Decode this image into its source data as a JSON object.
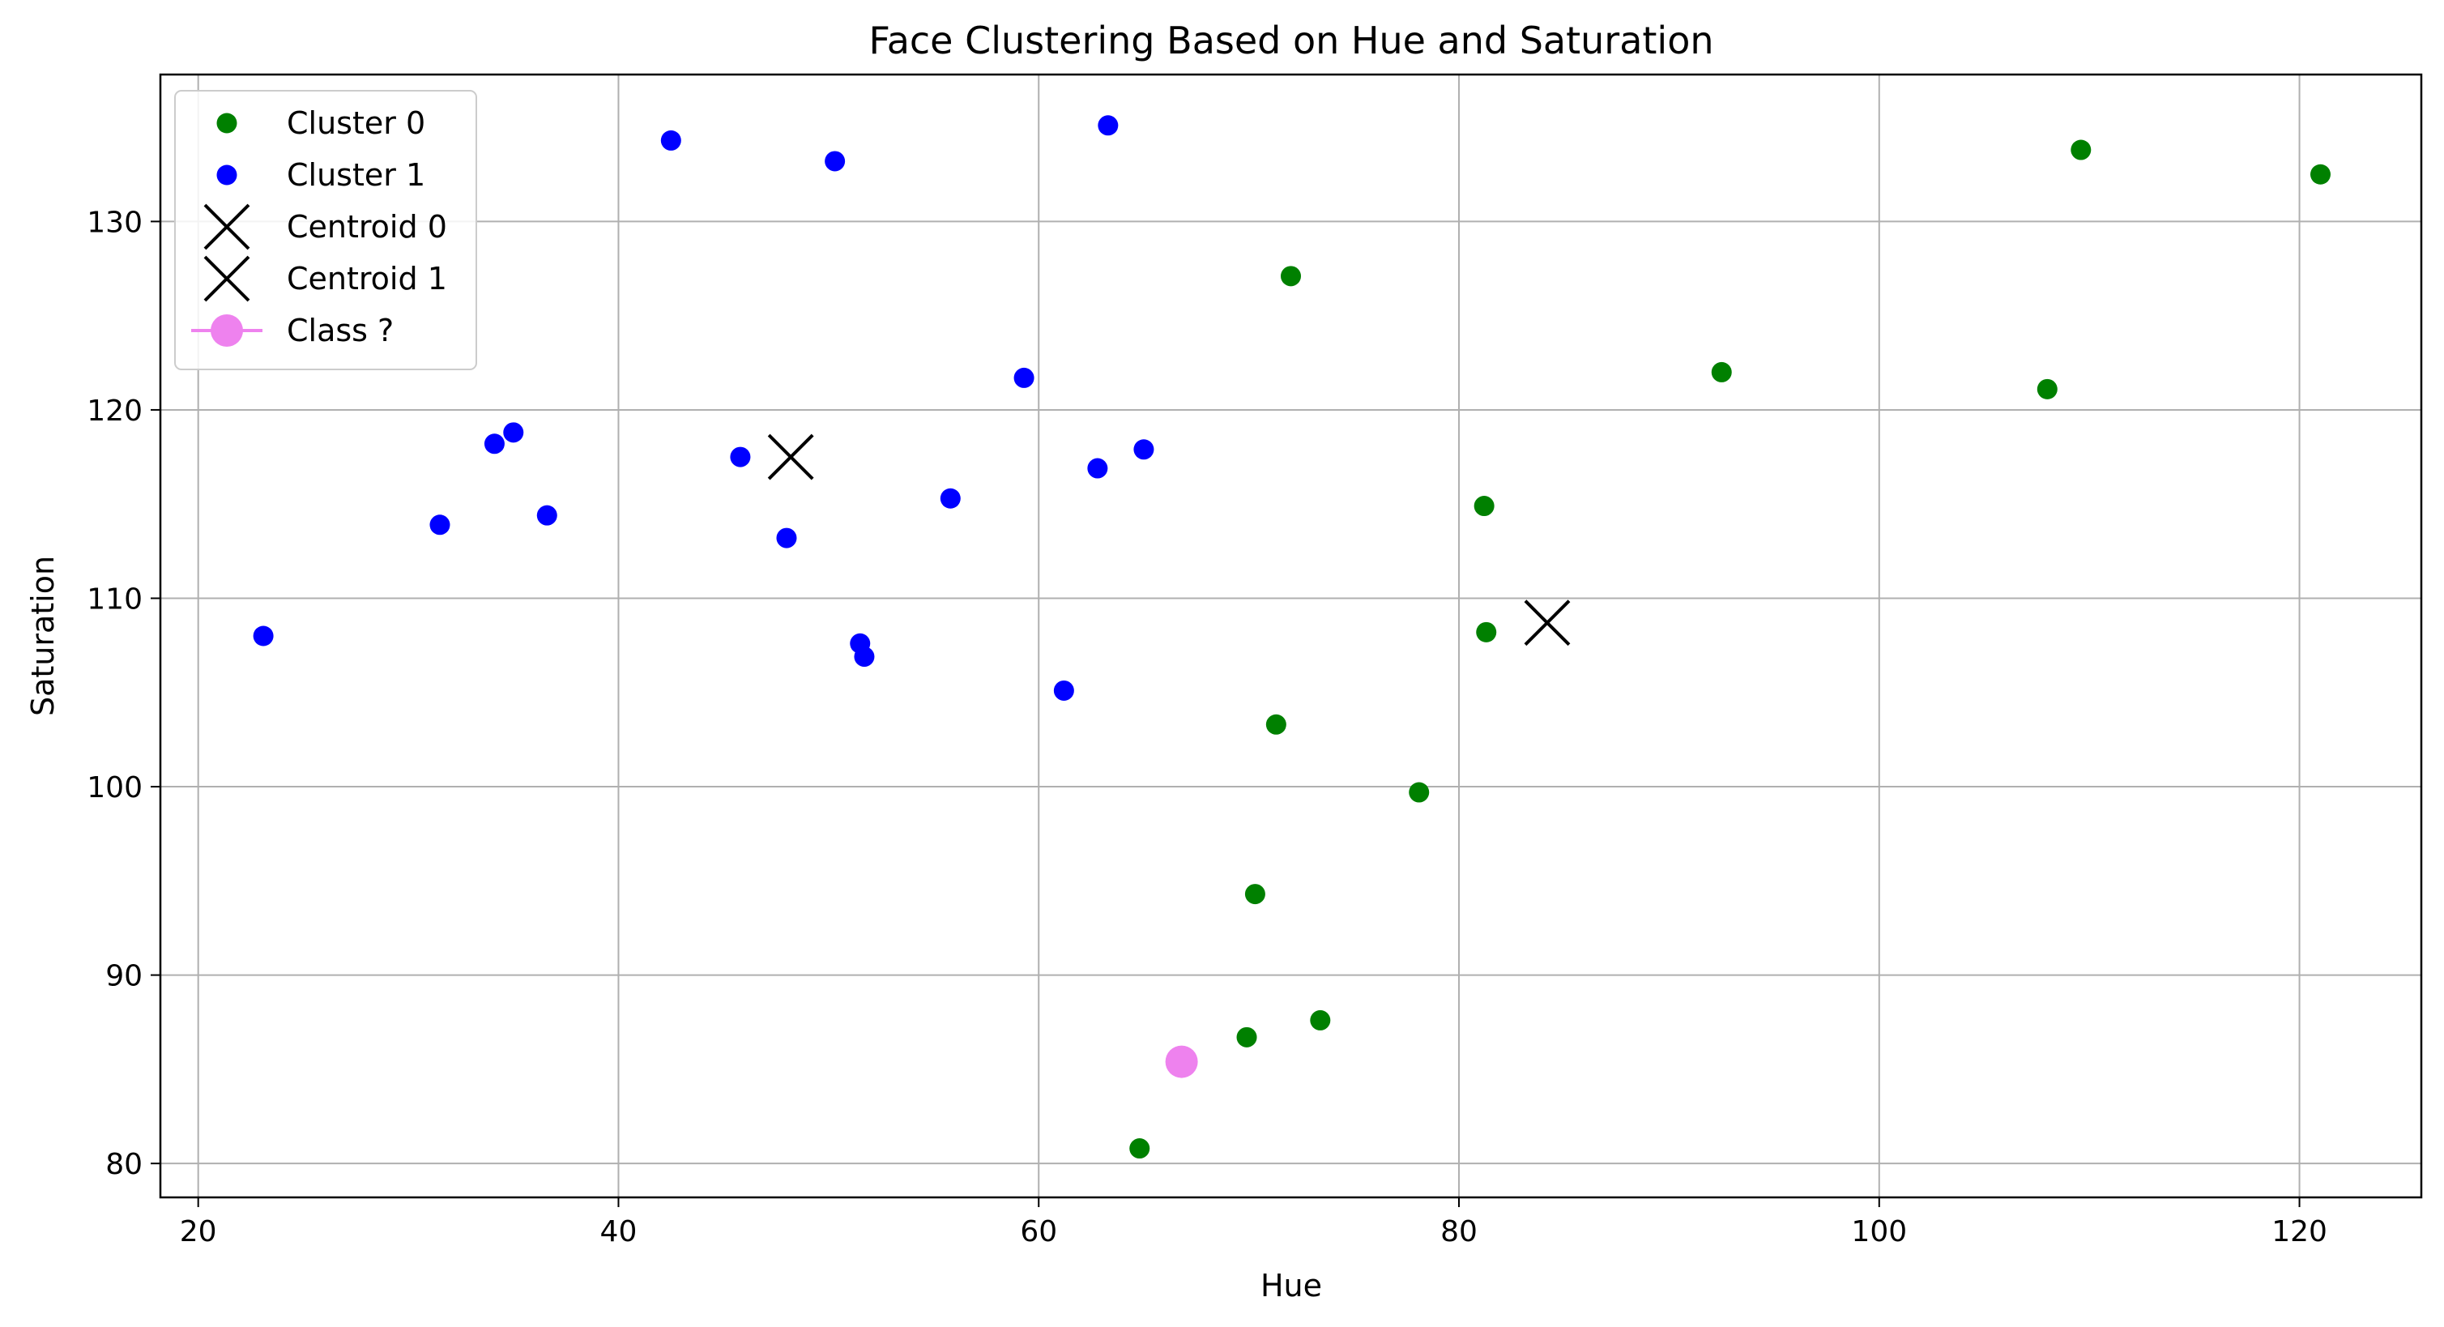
{
  "chart_data": {
    "type": "scatter",
    "title": "Face Clustering Based on Hue and Saturation",
    "xlabel": "Hue",
    "ylabel": "Saturation",
    "xlim": [
      18.2,
      125.8
    ],
    "ylim": [
      78.2,
      137.8
    ],
    "xticks": [
      20,
      40,
      60,
      80,
      100,
      120
    ],
    "yticks": [
      80,
      90,
      100,
      110,
      120,
      130
    ],
    "grid": true,
    "legend_position": "top-left",
    "series": [
      {
        "name": "Cluster 0",
        "marker": "dot",
        "color": "#008000",
        "points": [
          [
            72.0,
            127.1
          ],
          [
            92.5,
            122.0
          ],
          [
            108.0,
            121.1
          ],
          [
            109.6,
            133.8
          ],
          [
            121.0,
            132.5
          ],
          [
            81.2,
            114.9
          ],
          [
            81.3,
            108.2
          ],
          [
            71.3,
            103.3
          ],
          [
            78.1,
            99.7
          ],
          [
            70.3,
            94.3
          ],
          [
            69.9,
            86.7
          ],
          [
            73.4,
            87.6
          ],
          [
            64.8,
            80.8
          ]
        ]
      },
      {
        "name": "Cluster 1",
        "marker": "dot",
        "color": "#0000ff",
        "points": [
          [
            42.5,
            134.3
          ],
          [
            50.3,
            133.2
          ],
          [
            63.3,
            135.1
          ],
          [
            59.3,
            121.7
          ],
          [
            23.1,
            108.0
          ],
          [
            31.5,
            113.9
          ],
          [
            34.1,
            118.2
          ],
          [
            35.0,
            118.8
          ],
          [
            36.6,
            114.4
          ],
          [
            45.8,
            117.5
          ],
          [
            48.0,
            113.2
          ],
          [
            55.8,
            115.3
          ],
          [
            51.5,
            107.6
          ],
          [
            51.7,
            106.9
          ],
          [
            61.2,
            105.1
          ],
          [
            62.8,
            116.9
          ],
          [
            65.0,
            117.9
          ]
        ]
      },
      {
        "name": "Centroid 0",
        "marker": "x",
        "color": "#000000",
        "points": [
          [
            84.2,
            108.7
          ]
        ]
      },
      {
        "name": "Centroid 1",
        "marker": "x",
        "color": "#000000",
        "points": [
          [
            48.2,
            117.5
          ]
        ]
      },
      {
        "name": " Class ?",
        "marker": "big-dot",
        "color": "#ee82ee",
        "points": [
          [
            66.8,
            85.4
          ]
        ]
      }
    ]
  }
}
